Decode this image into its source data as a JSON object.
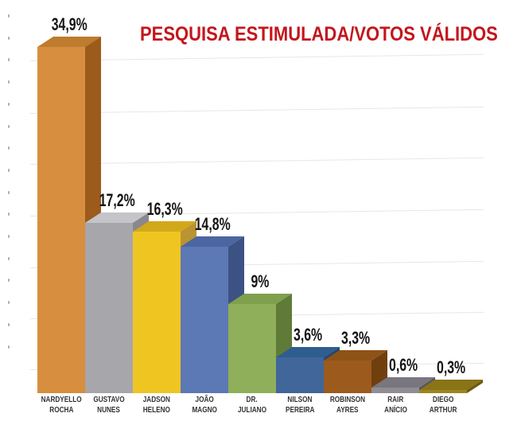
{
  "chart_data": {
    "type": "bar",
    "style": "3d",
    "title": "PESQUISA ESTIMULADA/VOTOS VÁLIDOS",
    "title_color": "#C4161C",
    "categories": [
      "NARDYELLO ROCHA",
      "GUSTAVO NUNES",
      "JADSON HELENO",
      "JOÃO MAGNO",
      "DR. JULIANO",
      "NILSON PEREIRA",
      "ROBINSON AYRES",
      "RAIR ANÍCIO",
      "DIEGO ARTHUR"
    ],
    "category_lines": [
      [
        "NARDYELLO",
        "ROCHA"
      ],
      [
        "GUSTAVO",
        "NUNES"
      ],
      [
        "JADSON",
        "HELENO"
      ],
      [
        "JOÃO",
        "MAGNO"
      ],
      [
        "DR.",
        "JULIANO"
      ],
      [
        "NILSON",
        "PEREIRA"
      ],
      [
        "ROBINSON",
        "AYRES"
      ],
      [
        "RAIR",
        "ANÍCIO"
      ],
      [
        "DIEGO",
        "ARTHUR"
      ]
    ],
    "values": [
      34.9,
      17.2,
      16.3,
      14.8,
      9,
      3.6,
      3.3,
      0.6,
      0.3
    ],
    "value_labels": [
      "34,9%",
      "17,2%",
      "16,3%",
      "14,8%",
      "9%",
      "3,6%",
      "3,3%",
      "0,6%",
      "0,3%"
    ],
    "xlabel": "",
    "ylabel": "",
    "ylim": [
      0,
      35
    ],
    "grid": true,
    "legend": false,
    "bar_colors": [
      {
        "front": "#D78E3E",
        "top": "#BF7B2E",
        "side": "#9C5B1B"
      },
      {
        "front": "#A7A6AB",
        "top": "#C5C4C8",
        "side": "#8A888E"
      },
      {
        "front": "#EFC522",
        "top": "#D2A81B",
        "side": "#BA9430"
      },
      {
        "front": "#5C79B5",
        "top": "#4B66A1",
        "side": "#3D5284"
      },
      {
        "front": "#8FAF5B",
        "top": "#7FA04C",
        "side": "#5F7B37"
      },
      {
        "front": "#40669A",
        "top": "#2F5D90",
        "side": "#28476F"
      },
      {
        "front": "#9D5A1D",
        "top": "#8E5316",
        "side": "#713F0E"
      },
      {
        "front": "#908E94",
        "top": "#797680",
        "side": "#57555B"
      },
      {
        "front": "#9C8621",
        "top": "#897418",
        "side": "#6B5A0F"
      }
    ]
  }
}
